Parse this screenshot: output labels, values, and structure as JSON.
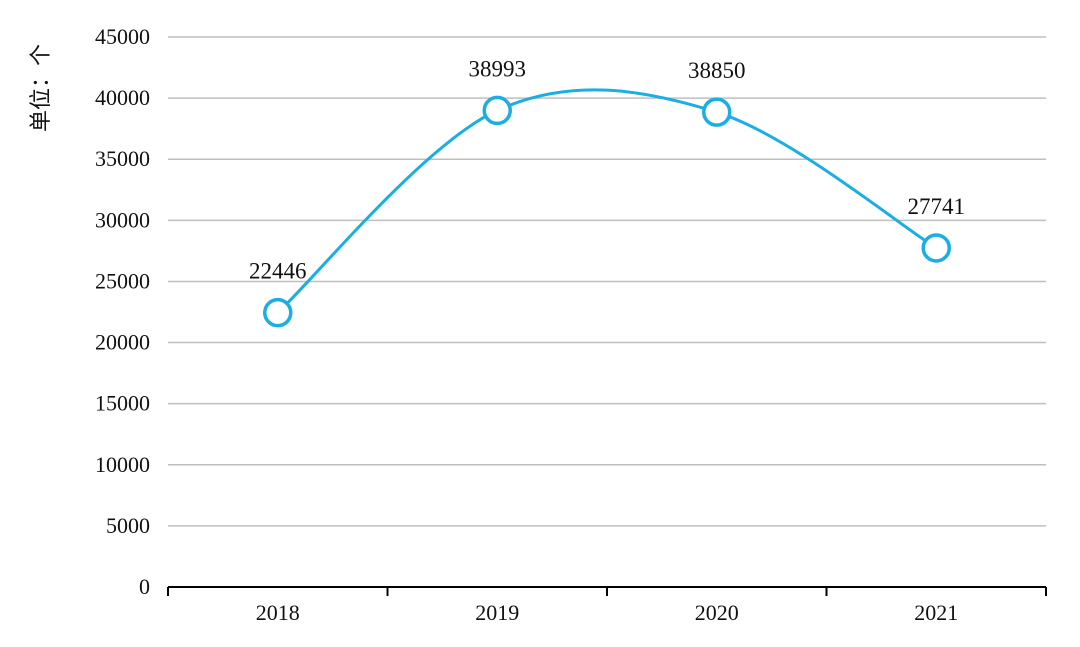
{
  "chart_data": {
    "type": "line",
    "smooth": true,
    "categories": [
      "2018",
      "2019",
      "2020",
      "2021"
    ],
    "series": [
      {
        "values": [
          22446,
          38993,
          38850,
          27741
        ]
      }
    ],
    "data_labels": [
      "22446",
      "38993",
      "38850",
      "27741"
    ],
    "ylabel": "单位：个",
    "ylim": [
      0,
      45000
    ],
    "yticks": [
      0,
      5000,
      10000,
      15000,
      20000,
      25000,
      30000,
      35000,
      40000,
      45000
    ],
    "ytick_labels": [
      "0",
      "5000",
      "10000",
      "15000",
      "20000",
      "25000",
      "30000",
      "35000",
      "40000",
      "45000"
    ],
    "grid": true,
    "legend": "none",
    "colors": {
      "line": "#1aaee3",
      "grid": "#bfbfbf",
      "axis": "#000000",
      "marker_fill": "#ffffff"
    }
  }
}
